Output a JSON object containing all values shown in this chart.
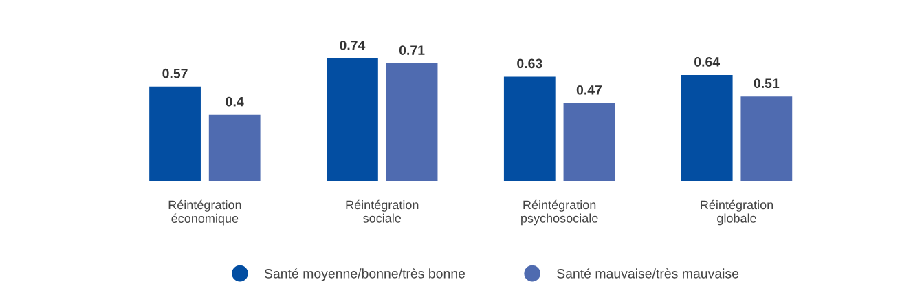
{
  "chart_data": {
    "type": "bar",
    "categories": [
      "Réintégration\néconomique",
      "Réintégration\nsociale",
      "Réintégration\npsychosociale",
      "Réintégration\nglobale"
    ],
    "series": [
      {
        "name": "Santé moyenne/bonne/très bonne",
        "color": "#034ea2",
        "values": [
          0.57,
          0.74,
          0.63,
          0.64
        ]
      },
      {
        "name": "Santé mauvaise/très mauvaise",
        "color": "#4f6bb0",
        "values": [
          0.4,
          0.71,
          0.47,
          0.51
        ]
      }
    ],
    "data_labels": true,
    "legend": "bottom",
    "marker": "circle",
    "grid": false,
    "tick_labels": "x"
  }
}
